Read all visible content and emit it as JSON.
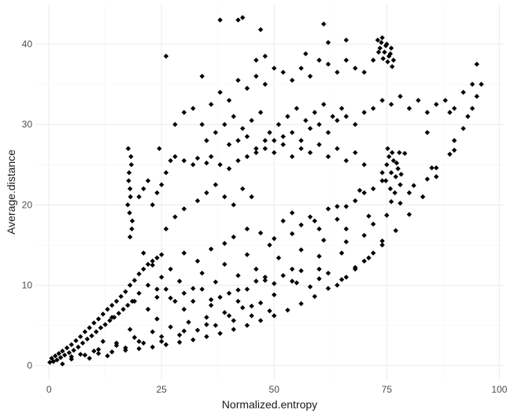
{
  "chart_data": {
    "type": "scatter",
    "title": "",
    "xlabel": "Normalized.entropy",
    "ylabel": "Average.distance",
    "xlim": [
      -3,
      101
    ],
    "ylim": [
      -1.8,
      45
    ],
    "x_ticks": [
      0,
      25,
      50,
      75,
      100
    ],
    "x_tick_labels": [
      "0",
      "25",
      "50",
      "75",
      "100"
    ],
    "y_ticks": [
      0,
      10,
      20,
      30,
      40
    ],
    "y_tick_labels": [
      "0",
      "10",
      "20",
      "30",
      "40"
    ],
    "grid": true,
    "legend": "none",
    "marker": "diamond",
    "point_color": "#000000",
    "grid_major_color": "#ebebeb",
    "grid_minor_color": "#f5f5f5",
    "points": [
      [
        0.2,
        0.4
      ],
      [
        0.6,
        0.9
      ],
      [
        1.0,
        0.5
      ],
      [
        1.4,
        1.2
      ],
      [
        1.8,
        0.7
      ],
      [
        2.2,
        1.5
      ],
      [
        2.6,
        1.0
      ],
      [
        3.0,
        1.8
      ],
      [
        3.5,
        1.3
      ],
      [
        4.0,
        2.2
      ],
      [
        4.5,
        1.6
      ],
      [
        5.0,
        2.6
      ],
      [
        5.5,
        1.9
      ],
      [
        6.0,
        3.1
      ],
      [
        6.5,
        2.3
      ],
      [
        7.0,
        3.6
      ],
      [
        7.5,
        2.8
      ],
      [
        8.0,
        4.2
      ],
      [
        8.5,
        3.3
      ],
      [
        9.0,
        4.7
      ],
      [
        9.5,
        3.7
      ],
      [
        10.0,
        5.3
      ],
      [
        10.5,
        4.2
      ],
      [
        11.0,
        5.8
      ],
      [
        11.5,
        4.7
      ],
      [
        12.0,
        6.4
      ],
      [
        12.5,
        5.1
      ],
      [
        13.0,
        7.0
      ],
      [
        13.5,
        5.6
      ],
      [
        14.0,
        7.5
      ],
      [
        14.5,
        6.0
      ],
      [
        15.0,
        8.0
      ],
      [
        15.5,
        6.5
      ],
      [
        16.0,
        8.6
      ],
      [
        16.5,
        7.0
      ],
      [
        17.0,
        9.2
      ],
      [
        17.5,
        7.5
      ],
      [
        18.0,
        10.0
      ],
      [
        18.5,
        8.0
      ],
      [
        19.0,
        10.6
      ],
      [
        20.0,
        11.4
      ],
      [
        21.0,
        12.0
      ],
      [
        22.0,
        12.6
      ],
      [
        23.0,
        13.0
      ],
      [
        24.0,
        13.4
      ],
      [
        25.0,
        13.8
      ],
      [
        5.0,
        1.1
      ],
      [
        8.0,
        1.3
      ],
      [
        11.0,
        1.5
      ],
      [
        14.0,
        1.7
      ],
      [
        17.0,
        1.9
      ],
      [
        20.0,
        2.1
      ],
      [
        23.0,
        2.3
      ],
      [
        26.0,
        2.6
      ],
      [
        29.0,
        2.9
      ],
      [
        32.0,
        3.2
      ],
      [
        35.0,
        3.6
      ],
      [
        38.0,
        4.0
      ],
      [
        41.0,
        4.5
      ],
      [
        44.0,
        5.0
      ],
      [
        47.0,
        5.6
      ],
      [
        50.0,
        6.2
      ],
      [
        53.0,
        6.9
      ],
      [
        56.0,
        7.7
      ],
      [
        59.0,
        8.6
      ],
      [
        62.0,
        9.6
      ],
      [
        65.0,
        10.7
      ],
      [
        68.0,
        12.0
      ],
      [
        71.0,
        13.4
      ],
      [
        74.0,
        15.0
      ],
      [
        77.0,
        16.8
      ],
      [
        80.0,
        18.8
      ],
      [
        83.0,
        21.0
      ],
      [
        86.0,
        23.5
      ],
      [
        89.0,
        26.3
      ],
      [
        92.0,
        29.5
      ],
      [
        94.0,
        32.0
      ],
      [
        96.0,
        35.0
      ],
      [
        10.0,
        1.8
      ],
      [
        15.0,
        2.5
      ],
      [
        20.0,
        3.0
      ],
      [
        25.0,
        3.6
      ],
      [
        30.0,
        4.3
      ],
      [
        35.0,
        5.1
      ],
      [
        40.0,
        6.2
      ],
      [
        45.0,
        7.4
      ],
      [
        50.0,
        8.8
      ],
      [
        55.0,
        10.3
      ],
      [
        60.0,
        12.0
      ],
      [
        65.0,
        14.0
      ],
      [
        70.0,
        16.2
      ],
      [
        75.0,
        18.7
      ],
      [
        80.0,
        21.5
      ],
      [
        85.0,
        24.6
      ],
      [
        90.0,
        28.0
      ],
      [
        93.0,
        31.0
      ],
      [
        95.0,
        33.5
      ],
      [
        12.0,
        3.0
      ],
      [
        18.0,
        4.5
      ],
      [
        24.0,
        5.8
      ],
      [
        30.0,
        7.0
      ],
      [
        36.0,
        8.2
      ],
      [
        42.0,
        9.4
      ],
      [
        48.0,
        10.6
      ],
      [
        54.0,
        12.0
      ],
      [
        60.0,
        13.6
      ],
      [
        66.0,
        15.4
      ],
      [
        72.0,
        17.6
      ],
      [
        78.0,
        20.2
      ],
      [
        84.0,
        23.2
      ],
      [
        90.0,
        26.8
      ],
      [
        14.0,
        6.0
      ],
      [
        19.0,
        8.0
      ],
      [
        24.0,
        9.5
      ],
      [
        29.0,
        10.5
      ],
      [
        34.0,
        11.5
      ],
      [
        39.0,
        12.6
      ],
      [
        44.0,
        13.8
      ],
      [
        49.0,
        15.0
      ],
      [
        54.0,
        16.4
      ],
      [
        59.0,
        18.0
      ],
      [
        64.0,
        19.8
      ],
      [
        69.0,
        21.8
      ],
      [
        74.0,
        24.0
      ],
      [
        79.0,
        26.4
      ],
      [
        84.0,
        29.0
      ],
      [
        89.0,
        31.5
      ],
      [
        22.0,
        7.0
      ],
      [
        27.0,
        8.4
      ],
      [
        32.0,
        9.6
      ],
      [
        37.0,
        10.4
      ],
      [
        42.0,
        11.2
      ],
      [
        46.0,
        12.0
      ],
      [
        51.0,
        13.4
      ],
      [
        56.0,
        14.4
      ],
      [
        61.0,
        15.6
      ],
      [
        66.0,
        17.0
      ],
      [
        71.0,
        18.6
      ],
      [
        76.0,
        20.4
      ],
      [
        81.0,
        22.4
      ],
      [
        86.0,
        24.6
      ],
      [
        18.0,
        16.0
      ],
      [
        18.5,
        18.0
      ],
      [
        17.5,
        20.0
      ],
      [
        18.0,
        22.0
      ],
      [
        17.8,
        24.0
      ],
      [
        18.2,
        26.0
      ],
      [
        17.6,
        27.0
      ],
      [
        18.4,
        17.0
      ],
      [
        17.9,
        19.0
      ],
      [
        18.1,
        21.0
      ],
      [
        17.7,
        23.0
      ],
      [
        18.3,
        25.0
      ],
      [
        20.0,
        21.0
      ],
      [
        21.0,
        22.0
      ],
      [
        22.0,
        23.0
      ],
      [
        23.0,
        20.0
      ],
      [
        24.0,
        21.5
      ],
      [
        25.0,
        22.5
      ],
      [
        26.0,
        24.0
      ],
      [
        24.5,
        27.0
      ],
      [
        27.0,
        25.5
      ],
      [
        28.0,
        26.0
      ],
      [
        30.0,
        25.5
      ],
      [
        32.0,
        25.0
      ],
      [
        33.0,
        25.8
      ],
      [
        35.0,
        25.2
      ],
      [
        36.0,
        26.0
      ],
      [
        38.0,
        25.0
      ],
      [
        40.0,
        24.5
      ],
      [
        42.0,
        25.5
      ],
      [
        44.0,
        26.0
      ],
      [
        46.0,
        26.5
      ],
      [
        48.0,
        27.0
      ],
      [
        50.0,
        28.0
      ],
      [
        52.0,
        28.5
      ],
      [
        54.0,
        29.0
      ],
      [
        56.0,
        28.0
      ],
      [
        58.0,
        29.5
      ],
      [
        60.0,
        30.0
      ],
      [
        62.0,
        29.0
      ],
      [
        64.0,
        30.5
      ],
      [
        66.0,
        31.0
      ],
      [
        68.0,
        30.0
      ],
      [
        70.0,
        31.5
      ],
      [
        72.0,
        32.0
      ],
      [
        74.0,
        33.0
      ],
      [
        76.0,
        32.5
      ],
      [
        78.0,
        33.5
      ],
      [
        80.0,
        32.0
      ],
      [
        82.0,
        33.0
      ],
      [
        84.0,
        31.5
      ],
      [
        86.0,
        32.5
      ],
      [
        88.0,
        33.0
      ],
      [
        90.0,
        32.0
      ],
      [
        92.0,
        34.0
      ],
      [
        94.0,
        35.0
      ],
      [
        95.0,
        37.5
      ],
      [
        35.0,
        28.0
      ],
      [
        37.0,
        29.0
      ],
      [
        39.0,
        30.0
      ],
      [
        41.0,
        31.0
      ],
      [
        43.0,
        29.5
      ],
      [
        45.0,
        30.5
      ],
      [
        47.0,
        31.5
      ],
      [
        49.0,
        29.0
      ],
      [
        51.0,
        30.0
      ],
      [
        53.0,
        31.0
      ],
      [
        55.0,
        32.0
      ],
      [
        57.0,
        30.5
      ],
      [
        59.0,
        31.5
      ],
      [
        61.0,
        32.5
      ],
      [
        63.0,
        31.0
      ],
      [
        65.0,
        32.0
      ],
      [
        40.0,
        27.5
      ],
      [
        42.0,
        28.0
      ],
      [
        44.0,
        28.5
      ],
      [
        46.0,
        27.0
      ],
      [
        48.0,
        28.0
      ],
      [
        50.0,
        26.5
      ],
      [
        52.0,
        27.5
      ],
      [
        54.0,
        26.0
      ],
      [
        56.0,
        27.0
      ],
      [
        58.0,
        26.5
      ],
      [
        60.0,
        27.5
      ],
      [
        62.0,
        26.0
      ],
      [
        64.0,
        27.0
      ],
      [
        66.0,
        25.5
      ],
      [
        68.0,
        26.5
      ],
      [
        70.0,
        25.0
      ],
      [
        28.0,
        30.0
      ],
      [
        30.0,
        31.5
      ],
      [
        32.0,
        32.0
      ],
      [
        34.0,
        30.0
      ],
      [
        36.0,
        32.5
      ],
      [
        38.0,
        34.0
      ],
      [
        40.0,
        33.0
      ],
      [
        42.0,
        35.5
      ],
      [
        44.0,
        34.5
      ],
      [
        46.0,
        36.0
      ],
      [
        48.0,
        35.0
      ],
      [
        50.0,
        37.0
      ],
      [
        52.0,
        36.5
      ],
      [
        54.0,
        35.5
      ],
      [
        56.0,
        37.0
      ],
      [
        58.0,
        36.0
      ],
      [
        60.0,
        38.0
      ],
      [
        62.0,
        37.5
      ],
      [
        64.0,
        36.5
      ],
      [
        66.0,
        38.0
      ],
      [
        68.0,
        37.0
      ],
      [
        70.0,
        36.5
      ],
      [
        72.0,
        38.0
      ],
      [
        38.0,
        43.0
      ],
      [
        42.0,
        43.0
      ],
      [
        43.0,
        43.3
      ],
      [
        47.0,
        41.8
      ],
      [
        61.0,
        42.5
      ],
      [
        62.0,
        40.2
      ],
      [
        26.0,
        38.5
      ],
      [
        34.0,
        36.0
      ],
      [
        46.0,
        38.0
      ],
      [
        48.0,
        38.5
      ],
      [
        57.0,
        38.8
      ],
      [
        66.0,
        40.5
      ],
      [
        73.0,
        40.5
      ],
      [
        73.5,
        39.5
      ],
      [
        74.0,
        40.8
      ],
      [
        74.5,
        39.0
      ],
      [
        75.0,
        40.0
      ],
      [
        75.5,
        38.5
      ],
      [
        76.0,
        39.5
      ],
      [
        76.5,
        38.0
      ],
      [
        73.2,
        39.0
      ],
      [
        74.2,
        38.2
      ],
      [
        75.2,
        37.8
      ],
      [
        76.2,
        37.2
      ],
      [
        73.8,
        40.2
      ],
      [
        74.8,
        39.8
      ],
      [
        75.8,
        38.8
      ],
      [
        75.0,
        25.0
      ],
      [
        75.5,
        26.0
      ],
      [
        76.0,
        24.0
      ],
      [
        76.5,
        25.5
      ],
      [
        77.0,
        23.5
      ],
      [
        77.5,
        24.5
      ],
      [
        78.0,
        22.5
      ],
      [
        75.2,
        27.0
      ],
      [
        76.2,
        26.5
      ],
      [
        77.2,
        25.2
      ],
      [
        78.2,
        23.8
      ],
      [
        74.8,
        23.0
      ],
      [
        75.8,
        22.0
      ],
      [
        76.8,
        21.5
      ],
      [
        77.8,
        26.5
      ],
      [
        52.0,
        18.0
      ],
      [
        54.0,
        19.0
      ],
      [
        56.0,
        17.5
      ],
      [
        58.0,
        18.5
      ],
      [
        60.0,
        17.0
      ],
      [
        62.0,
        19.5
      ],
      [
        64.0,
        18.2
      ],
      [
        66.0,
        19.8
      ],
      [
        68.0,
        20.5
      ],
      [
        70.0,
        21.5
      ],
      [
        72.0,
        22.0
      ],
      [
        74.0,
        23.0
      ],
      [
        30.0,
        14.0
      ],
      [
        33.0,
        13.0
      ],
      [
        36.0,
        14.5
      ],
      [
        39.0,
        15.2
      ],
      [
        41.0,
        16.0
      ],
      [
        44.0,
        17.0
      ],
      [
        47.0,
        16.5
      ],
      [
        50.0,
        15.8
      ],
      [
        27.0,
        12.0
      ],
      [
        25.0,
        11.0
      ],
      [
        23.0,
        12.5
      ],
      [
        21.0,
        14.0
      ],
      [
        26.0,
        17.0
      ],
      [
        28.0,
        18.5
      ],
      [
        30.0,
        19.5
      ],
      [
        33.0,
        20.5
      ],
      [
        35.0,
        21.5
      ],
      [
        37.0,
        22.5
      ],
      [
        39.0,
        21.0
      ],
      [
        41.0,
        20.0
      ],
      [
        43.0,
        22.0
      ],
      [
        45.0,
        21.0
      ],
      [
        20.0,
        9.0
      ],
      [
        22.0,
        10.0
      ],
      [
        24.0,
        8.5
      ],
      [
        26.0,
        9.5
      ],
      [
        28.0,
        8.0
      ],
      [
        30.0,
        9.0
      ],
      [
        32.0,
        8.0
      ],
      [
        34.0,
        9.5
      ],
      [
        36.0,
        7.5
      ],
      [
        38.0,
        8.5
      ],
      [
        40.0,
        9.0
      ],
      [
        42.0,
        8.0
      ],
      [
        44.0,
        9.5
      ],
      [
        46.0,
        10.5
      ],
      [
        48.0,
        11.0
      ],
      [
        50.0,
        10.2
      ],
      [
        52.0,
        11.2
      ],
      [
        54.0,
        10.5
      ],
      [
        56.0,
        11.8
      ],
      [
        58.0,
        9.8
      ],
      [
        60.0,
        10.8
      ],
      [
        62.0,
        11.5
      ],
      [
        64.0,
        10.0
      ],
      [
        66.0,
        11.0
      ],
      [
        68.0,
        12.2
      ],
      [
        70.0,
        13.0
      ],
      [
        72.0,
        14.0
      ],
      [
        74.0,
        15.5
      ],
      [
        3.0,
        0.2
      ],
      [
        5.0,
        0.8
      ],
      [
        7.0,
        1.4
      ],
      [
        9.0,
        0.9
      ],
      [
        11.0,
        2.0
      ],
      [
        13.0,
        1.2
      ],
      [
        15.0,
        2.8
      ],
      [
        17.0,
        2.2
      ],
      [
        19.0,
        3.5
      ],
      [
        21.0,
        2.8
      ],
      [
        23.0,
        4.2
      ],
      [
        25.0,
        3.0
      ],
      [
        27.0,
        4.8
      ],
      [
        29.0,
        3.8
      ],
      [
        31.0,
        5.4
      ],
      [
        33.0,
        4.4
      ],
      [
        35.0,
        6.0
      ],
      [
        37.0,
        5.0
      ],
      [
        39.0,
        6.6
      ],
      [
        41.0,
        5.6
      ],
      [
        43.0,
        7.2
      ],
      [
        45.0,
        6.2
      ],
      [
        47.0,
        7.8
      ],
      [
        49.0,
        6.8
      ]
    ]
  }
}
